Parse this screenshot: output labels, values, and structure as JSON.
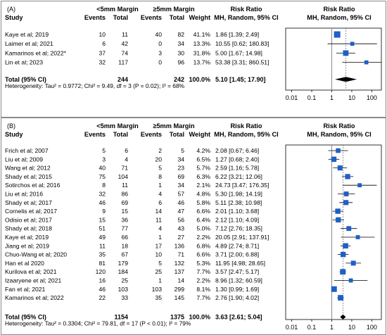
{
  "chart_data": [
    {
      "type": "forest",
      "panel_label": "(A)",
      "header": {
        "study": "Study",
        "group1": "<5mm Margin",
        "group2": "≥5mm Margin",
        "events": "Events",
        "total": "Total",
        "weight": "Weight",
        "rr_title": "Risk Ratio",
        "rr_sub": "MH, Random, 95% CI",
        "plot_title": "Risk Ratio",
        "plot_sub": "MH, Random, 95% CI"
      },
      "studies": [
        {
          "name": "Kaye et al; 2019",
          "e1": 10,
          "n1": 11,
          "e2": 40,
          "n2": 82,
          "weight": "41.1%",
          "rr": 1.86,
          "lo": 1.39,
          "hi": 2.49,
          "ci_text": "1.86 [1.39;   2.49]"
        },
        {
          "name": "Laimer et al; 2021",
          "e1": 6,
          "n1": 42,
          "e2": 0,
          "n2": 34,
          "weight": "13.3%",
          "rr": 10.55,
          "lo": 0.62,
          "hi": 180.83,
          "ci_text": "10.55 [0.62; 180.83]"
        },
        {
          "name": "Kamarinos et al; 2022*",
          "e1": 37,
          "n1": 74,
          "e2": 3,
          "n2": 30,
          "weight": "31.8%",
          "rr": 5.0,
          "lo": 1.67,
          "hi": 14.98,
          "ci_text": "5.00 [1.67;  14.98]"
        },
        {
          "name": "Lin et al; 2023",
          "e1": 32,
          "n1": 117,
          "e2": 0,
          "n2": 96,
          "weight": "13.7%",
          "rr": 53.38,
          "lo": 3.31,
          "hi": 860.51,
          "ci_text": "53.38 [3.31; 860.51]"
        }
      ],
      "total": {
        "label": "Total (95% CI)",
        "n1": 244,
        "n2": 242,
        "weight": "100.0%",
        "rr": 5.1,
        "lo": 1.45,
        "hi": 17.9,
        "ci_text": "5.10 [1.45;  17.90]"
      },
      "heterogeneity": "Heterogeneity: Tau² = 0.9772; Chi² = 9.49, df = 3 (P = 0.02); I² = 68%",
      "x_scale": "log",
      "x_ticks": [
        0.01,
        0.1,
        1,
        10,
        100
      ],
      "x_tick_labels": [
        "0.01",
        "0.1",
        "1",
        "10",
        "100"
      ],
      "xlim": [
        0.005,
        300
      ]
    },
    {
      "type": "forest",
      "panel_label": "(B)",
      "header": {
        "study": "Study",
        "group1": "<5mm Margin",
        "group2": "≥5mm Margin",
        "events": "Events",
        "total": "Total",
        "weight": "Weight",
        "rr_title": "Risk Ratio",
        "rr_sub": "MH, Random, 95% CI",
        "plot_title": "Risk Ratio",
        "plot_sub": "MH, Random, 95% CI"
      },
      "studies": [
        {
          "name": "Frich et al; 2007",
          "e1": 5,
          "n1": 6,
          "e2": 2,
          "n2": 5,
          "weight": "4.2%",
          "rr": 2.08,
          "lo": 0.67,
          "hi": 6.46,
          "ci_text": "2.08 [0.67;   6.46]"
        },
        {
          "name": "Liu et al; 2009",
          "e1": 3,
          "n1": 4,
          "e2": 20,
          "n2": 34,
          "weight": "6.5%",
          "rr": 1.27,
          "lo": 0.68,
          "hi": 2.4,
          "ci_text": "1.27 [0.68;   2.40]"
        },
        {
          "name": "Wang et al; 2012",
          "e1": 40,
          "n1": 71,
          "e2": 5,
          "n2": 23,
          "weight": "5.7%",
          "rr": 2.59,
          "lo": 1.16,
          "hi": 5.78,
          "ci_text": "2.59 [1.16;   5.78]"
        },
        {
          "name": "Shady et al; 2015",
          "e1": 75,
          "n1": 104,
          "e2": 8,
          "n2": 69,
          "weight": "6.3%",
          "rr": 6.22,
          "lo": 3.21,
          "hi": 12.06,
          "ci_text": "6.22 [3.21;  12.06]"
        },
        {
          "name": "Sotirchos et al; 2016",
          "e1": 8,
          "n1": 11,
          "e2": 1,
          "n2": 34,
          "weight": "2.1%",
          "rr": 24.73,
          "lo": 3.47,
          "hi": 176.35,
          "ci_text": "24.73 [3.47; 176.35]"
        },
        {
          "name": "Liu et al; 2016",
          "e1": 32,
          "n1": 86,
          "e2": 4,
          "n2": 57,
          "weight": "4.8%",
          "rr": 5.3,
          "lo": 1.98,
          "hi": 14.19,
          "ci_text": "5.30 [1.98;  14.19]"
        },
        {
          "name": "Shady et al; 2017",
          "e1": 46,
          "n1": 69,
          "e2": 6,
          "n2": 46,
          "weight": "5.8%",
          "rr": 5.11,
          "lo": 2.38,
          "hi": 10.98,
          "ci_text": "5.11 [2.38;  10.98]"
        },
        {
          "name": "Cornelis et al; 2017",
          "e1": 9,
          "n1": 15,
          "e2": 14,
          "n2": 47,
          "weight": "6.6%",
          "rr": 2.01,
          "lo": 1.1,
          "hi": 3.68,
          "ci_text": "2.01 [1.10;   3.68]"
        },
        {
          "name": "Odisio et al; 2017",
          "e1": 15,
          "n1": 36,
          "e2": 11,
          "n2": 56,
          "weight": "6.4%",
          "rr": 2.12,
          "lo": 1.1,
          "hi": 4.09,
          "ci_text": "2.12 [1.10;   4.09]"
        },
        {
          "name": "Shady et al; 2018",
          "e1": 51,
          "n1": 77,
          "e2": 4,
          "n2": 43,
          "weight": "5.0%",
          "rr": 7.12,
          "lo": 2.76,
          "hi": 18.35,
          "ci_text": "7.12 [2.76;  18.35]"
        },
        {
          "name": "Kaye et al; 2019",
          "e1": 49,
          "n1": 66,
          "e2": 1,
          "n2": 27,
          "weight": "2.2%",
          "rr": 20.05,
          "lo": 2.91,
          "hi": 137.91,
          "ci_text": "20.05 [2.91; 137.91]"
        },
        {
          "name": "Jiang et al; 2019",
          "e1": 11,
          "n1": 18,
          "e2": 17,
          "n2": 136,
          "weight": "6.8%",
          "rr": 4.89,
          "lo": 2.74,
          "hi": 8.71,
          "ci_text": "4.89 [2.74;   8.71]"
        },
        {
          "name": "Chuo-Wang et al; 2020",
          "e1": 35,
          "n1": 67,
          "e2": 10,
          "n2": 71,
          "weight": "6.6%",
          "rr": 3.71,
          "lo": 2.0,
          "hi": 6.88,
          "ci_text": "3.71 [2.00;   6.88]"
        },
        {
          "name": "Han et al 2020",
          "e1": 81,
          "n1": 179,
          "e2": 5,
          "n2": 132,
          "weight": "5.3%",
          "rr": 11.95,
          "lo": 4.98,
          "hi": 28.65,
          "ci_text": "11.95 [4.98;  28.65]"
        },
        {
          "name": "Kurilova et al; 2021",
          "e1": 120,
          "n1": 184,
          "e2": 25,
          "n2": 137,
          "weight": "7.7%",
          "rr": 3.57,
          "lo": 2.47,
          "hi": 5.17,
          "ci_text": "3.57 [2.47;   5.17]"
        },
        {
          "name": "Izaaryene et al; 2021",
          "e1": 16,
          "n1": 25,
          "e2": 1,
          "n2": 14,
          "weight": "2.2%",
          "rr": 8.96,
          "lo": 1.32,
          "hi": 60.59,
          "ci_text": "8.96 [1.32;  60.59]"
        },
        {
          "name": "Fan et al; 2021",
          "e1": 46,
          "n1": 103,
          "e2": 103,
          "n2": 299,
          "weight": "8.1%",
          "rr": 1.3,
          "lo": 0.99,
          "hi": 1.69,
          "ci_text": "1.30 [0.99;   1.69]"
        },
        {
          "name": "Kamarinos et al; 2022",
          "e1": 22,
          "n1": 33,
          "e2": 35,
          "n2": 145,
          "weight": "7.7%",
          "rr": 2.76,
          "lo": 1.9,
          "hi": 4.02,
          "ci_text": "2.76 [1.90;   4.02]"
        }
      ],
      "total": {
        "label": "Total (95% CI)",
        "n1": 1154,
        "n2": 1375,
        "weight": "100.0%",
        "rr": 3.63,
        "lo": 2.61,
        "hi": 5.04,
        "ci_text": "3.63 [2.61;   5.04]"
      },
      "heterogeneity": "Heterogeneity: Tau² = 0.3304; Chi² = 79.81, df = 17 (P < 0.01); I² = 79%",
      "x_scale": "log",
      "x_ticks": [
        0.01,
        0.1,
        1,
        10,
        100
      ],
      "x_tick_labels": [
        "0.01",
        "0.1",
        "1",
        "10",
        "100"
      ],
      "xlim": [
        0.005,
        300
      ]
    }
  ],
  "colors": {
    "square": "#1f5fc8",
    "diamond": "#000000",
    "reference_line": "#888888",
    "border": "#8a8a8a"
  }
}
